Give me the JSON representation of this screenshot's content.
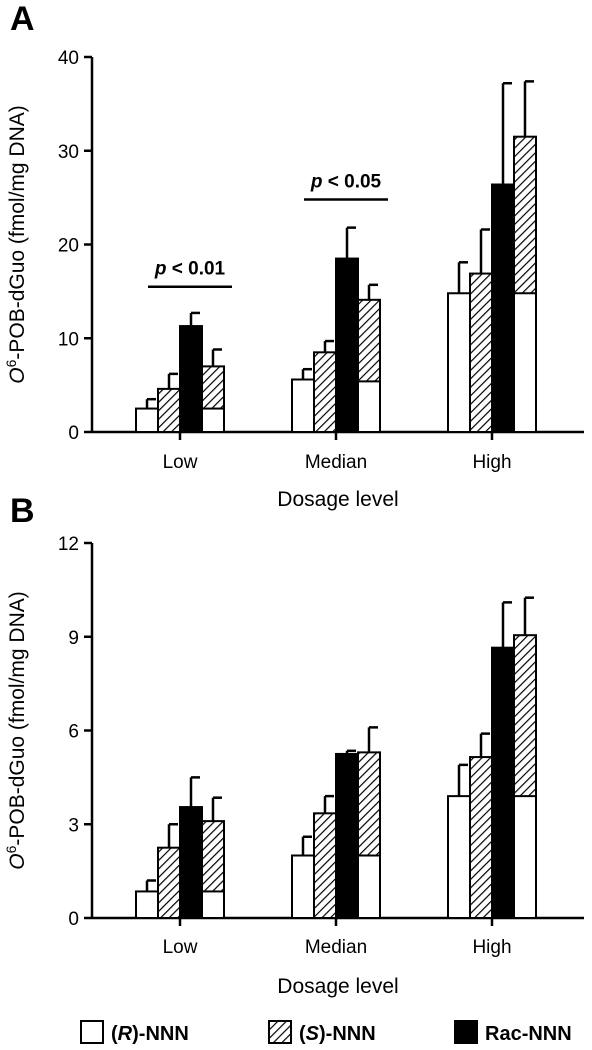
{
  "legend": {
    "items": [
      {
        "key": "R",
        "label": "(R)-NNN",
        "prefix": "(",
        "italic": "R",
        "suffix": ")-NNN",
        "fill": "white"
      },
      {
        "key": "S",
        "label": "(S)-NNN",
        "prefix": "(",
        "italic": "S",
        "suffix": ")-NNN",
        "fill": "hatch"
      },
      {
        "key": "Rac",
        "label": "Rac-NNN",
        "prefix": "Rac-NNN",
        "italic": "",
        "suffix": "",
        "fill": "black"
      }
    ]
  },
  "chart_data": [
    {
      "panel": "A",
      "type": "bar",
      "ylabel": "O6-POB-dGuo (fmol/mg DNA)",
      "ylabel_parts": {
        "italic": "O",
        "sup": "6",
        "rest": "-POB-dGuo (fmol/mg DNA)"
      },
      "xlabel": "Dosage level",
      "categories": [
        "Low",
        "Median",
        "High"
      ],
      "ylim": [
        0,
        40
      ],
      "yticks": [
        0,
        10,
        20,
        30,
        40
      ],
      "series": [
        {
          "name": "(R)-NNN",
          "fill": "white",
          "values": [
            2.5,
            5.6,
            14.8
          ],
          "errors": [
            1.0,
            1.1,
            3.3
          ]
        },
        {
          "name": "(S)-NNN",
          "fill": "hatch",
          "values": [
            4.6,
            8.5,
            16.9
          ],
          "errors": [
            1.6,
            1.2,
            4.7
          ]
        },
        {
          "name": "Rac-NNN",
          "fill": "black",
          "values": [
            11.3,
            18.5,
            26.4
          ],
          "errors": [
            1.4,
            3.3,
            10.8
          ]
        },
        {
          "name": "(S)-NNN",
          "fill": "hatch",
          "values": [
            7.0,
            14.1,
            31.5
          ],
          "errors": [
            1.8,
            1.6,
            5.9
          ],
          "inner_white": [
            2.5,
            5.4,
            14.8
          ]
        }
      ],
      "annotations": [
        {
          "text": "p < 0.01",
          "italic": "p",
          "rest": " < 0.01",
          "category": 0,
          "y": 15.5
        },
        {
          "text": "p < 0.05",
          "italic": "p",
          "rest": " < 0.05",
          "category": 1,
          "y": 24.8
        }
      ]
    },
    {
      "panel": "B",
      "type": "bar",
      "ylabel": "O6-POB-dGuo (fmol/mg DNA)",
      "ylabel_parts": {
        "italic": "O",
        "sup": "6",
        "rest": "-POB-dGuo (fmol/mg DNA)"
      },
      "xlabel": "Dosage level",
      "categories": [
        "Low",
        "Median",
        "High"
      ],
      "ylim": [
        0,
        12
      ],
      "yticks": [
        0,
        3,
        6,
        9,
        12
      ],
      "series": [
        {
          "name": "(R)-NNN",
          "fill": "white",
          "values": [
            0.85,
            2.0,
            3.9
          ],
          "errors": [
            0.35,
            0.6,
            1.0
          ]
        },
        {
          "name": "(S)-NNN",
          "fill": "hatch",
          "values": [
            2.25,
            3.35,
            5.15
          ],
          "errors": [
            0.75,
            0.55,
            0.75
          ]
        },
        {
          "name": "Rac-NNN",
          "fill": "black",
          "values": [
            3.55,
            5.25,
            8.65
          ],
          "errors": [
            0.95,
            0.1,
            1.45
          ]
        },
        {
          "name": "(S)-NNN",
          "fill": "hatch",
          "values": [
            3.1,
            5.3,
            9.05
          ],
          "errors": [
            0.75,
            0.8,
            1.2
          ],
          "inner_white": [
            0.85,
            2.0,
            3.9
          ]
        }
      ],
      "annotations": []
    }
  ]
}
